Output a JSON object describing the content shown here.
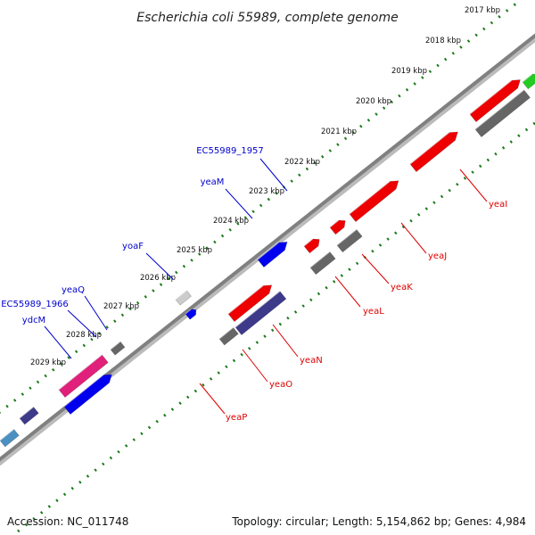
{
  "title": "Escherichia coli 55989, complete genome",
  "accession": "Accession: NC_011748",
  "summary": "Topology: circular; Length: 5,154,862 bp; Genes: 4,984",
  "colors": {
    "label_upper": "#0000cc",
    "label_lower": "#dd0000",
    "tick_dots": "#1a7a1a",
    "backbone": "#888888",
    "feature_red": "#ee0000",
    "feature_gray": "#666666",
    "feature_blue": "#0000ee",
    "feature_navy": "#3d3a8a",
    "feature_pink": "#e0207a",
    "feature_green": "#22cc22",
    "feature_light_gray": "#cccccc",
    "feature_steel": "#4a90c0"
  },
  "scale_labels": [
    "2017 kbp",
    "2018 kbp",
    "2019 kbp",
    "2020 kbp",
    "2021 kbp",
    "2022 kbp",
    "2023 kbp",
    "2024 kbp",
    "2025 kbp",
    "2026 kbp",
    "2027 kbp",
    "2028 kbp",
    "2029 kbp"
  ],
  "upper_labels": [
    "EC55989_1957",
    "yeaM",
    "yoaF",
    "yeaQ",
    "EC55989_1966",
    "ydcM"
  ],
  "lower_labels": [
    "yeaI",
    "yeaJ",
    "yeaK",
    "yeaL",
    "yeaN",
    "yeaO",
    "yeaP"
  ],
  "features": [
    {
      "color": "feature_red"
    },
    {
      "color": "feature_red"
    },
    {
      "color": "feature_gray"
    },
    {
      "color": "feature_red"
    },
    {
      "color": "feature_gray"
    },
    {
      "color": "feature_red"
    },
    {
      "color": "feature_gray"
    },
    {
      "color": "feature_red"
    },
    {
      "color": "feature_navy"
    },
    {
      "color": "feature_gray"
    },
    {
      "color": "feature_red"
    },
    {
      "color": "feature_blue"
    },
    {
      "color": "feature_blue"
    },
    {
      "color": "feature_light_gray"
    },
    {
      "color": "feature_gray"
    },
    {
      "color": "feature_pink"
    },
    {
      "color": "feature_blue"
    },
    {
      "color": "feature_navy"
    },
    {
      "color": "feature_steel"
    },
    {
      "color": "feature_green"
    }
  ]
}
